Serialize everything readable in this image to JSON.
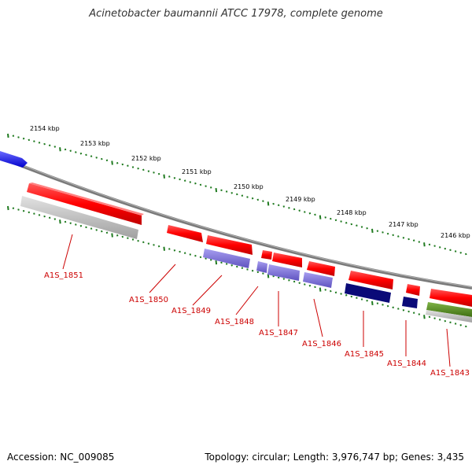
{
  "title": "Acinetobacter baumannii ATCC 17978, complete genome",
  "accession": "Accession: NC_009085",
  "summary": "Topology: circular; Length: 3,976,747 bp; Genes: 3,435",
  "scale_labels": [
    "2154 kbp",
    "2153 kbp",
    "2152 kbp",
    "2151 kbp",
    "2150 kbp",
    "2149 kbp",
    "2148 kbp",
    "2147 kbp",
    "2146 kbp"
  ],
  "gene_labels": [
    "A1S_1851",
    "A1S_1850",
    "A1S_1849",
    "A1S_1848",
    "A1S_1847",
    "A1S_1846",
    "A1S_1845",
    "A1S_1844",
    "A1S_1843"
  ],
  "colors": {
    "cds": "#ff0000",
    "cds_dark": "#b80000",
    "strand_blue": "#1a1aff",
    "gray": "#bdbdbd",
    "purple": "#7b6fd6",
    "navy": "#0a0a78",
    "olive": "#4f8c1c",
    "backbone": "#808080",
    "scale": "#1f7a1f",
    "label": "#cc0000"
  }
}
